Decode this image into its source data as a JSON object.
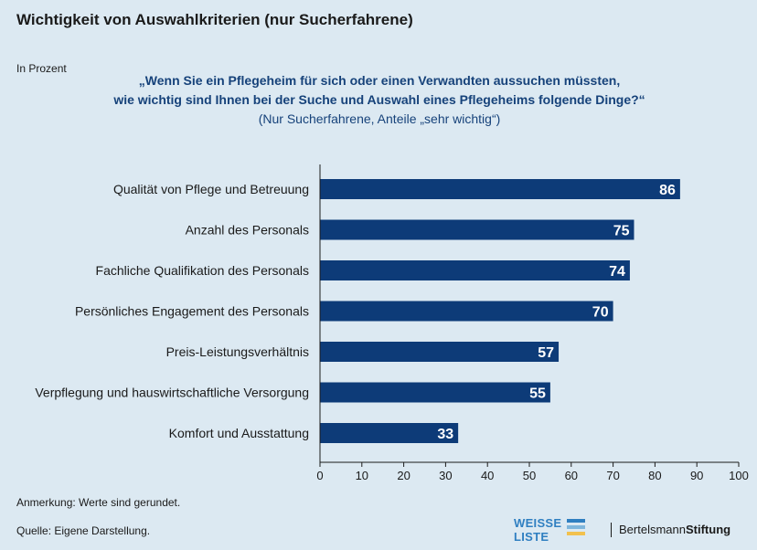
{
  "title": "Wichtigkeit von Auswahlkriterien (nur Sucherfahrene)",
  "unit_label": "In Prozent",
  "question_line1": "„Wenn Sie ein Pflegeheim für sich oder einen Verwandten aussuchen müssten,",
  "question_line2": "wie wichtig sind Ihnen bei der Suche und Auswahl eines Pflegeheims folgende Dinge?“",
  "question_sub": "(Nur Sucherfahrene, Anteile „sehr wichtig“)",
  "note": "Anmerkung: Werte sind gerundet.",
  "source": "Quelle: Eigene Darstellung.",
  "logo_weisse_liste": {
    "line1": "WEISSE",
    "line2": "LISTE",
    "bar_colors": [
      "#2f7fc1",
      "#7fb6dc",
      "#f2c14e"
    ]
  },
  "logo_bertelsmann": {
    "part1": "Bertelsmann",
    "part2": "Stiftung"
  },
  "colors": {
    "bar": "#0d3b78",
    "background": "#dce9f2",
    "value_text": "#ffffff"
  },
  "chart_data": {
    "type": "bar",
    "orientation": "horizontal",
    "categories": [
      "Qualität von Pflege und Betreuung",
      "Anzahl des Personals",
      "Fachliche Qualifikation des Personals",
      "Persönliches Engagement des Personals",
      "Preis-Leistungsverhältnis",
      "Verpflegung und hauswirtschaftliche Versorgung",
      "Komfort und Ausstattung"
    ],
    "values": [
      86,
      75,
      74,
      70,
      57,
      55,
      33
    ],
    "xlim": [
      0,
      100
    ],
    "xticks": [
      0,
      10,
      20,
      30,
      40,
      50,
      60,
      70,
      80,
      90,
      100
    ],
    "grid": false,
    "data_labels": "inside-end"
  }
}
